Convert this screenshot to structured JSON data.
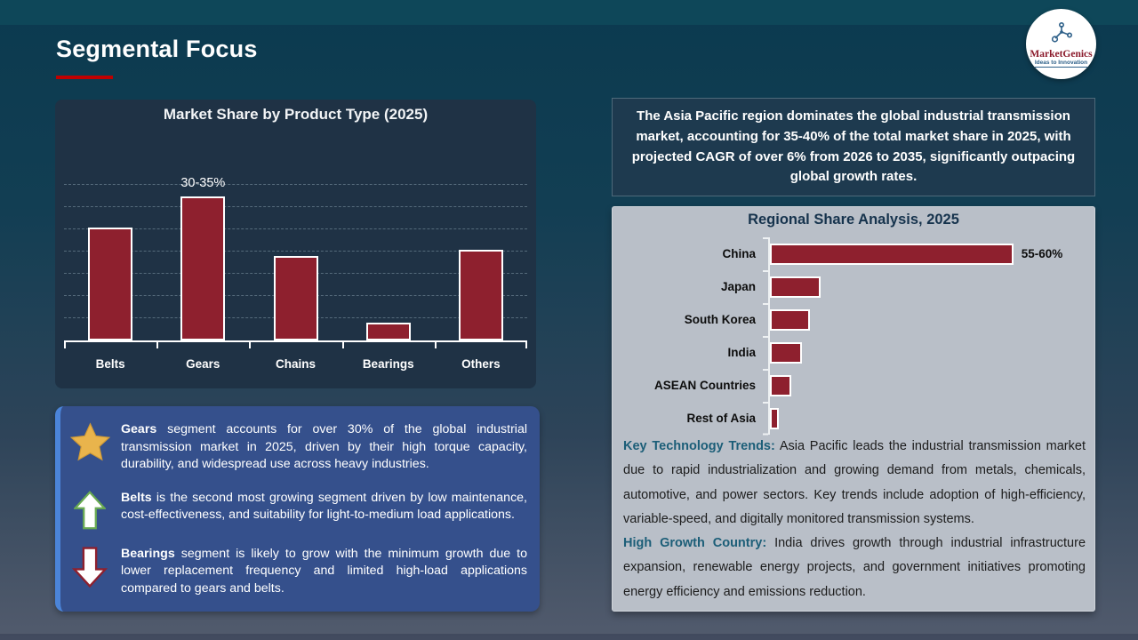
{
  "slide": {
    "title": "Segmental Focus"
  },
  "logo": {
    "brand": "MarketGenics",
    "tagline": "Ideas to Innovation"
  },
  "colors": {
    "accent_underline": "#c00000",
    "bar_red": "#8e202e",
    "panel_navy": "#1f3245",
    "insight_box_blue": "#35508c",
    "insight_stripe_blue": "#4b84d8",
    "region_panel_gray": "#b9bfc8",
    "teal_lead_text": "#1c5e78",
    "star_gold": "#e9b44c",
    "arrow_up_green": "#6aab52",
    "arrow_down_red": "#8e202e"
  },
  "chart_data": [
    {
      "type": "bar",
      "orientation": "vertical",
      "title": "Market Share by Product Type (2025)",
      "categories": [
        "Belts",
        "Gears",
        "Chains",
        "Bearings",
        "Others"
      ],
      "values": [
        25.5,
        32.5,
        19,
        4,
        20.5
      ],
      "data_labels": [
        "",
        "30-35%",
        "",
        "",
        ""
      ],
      "xlabel": "",
      "ylabel": "",
      "ylim": [
        0,
        38
      ],
      "grid": true,
      "grid_step": 5,
      "legend": false
    },
    {
      "type": "bar",
      "orientation": "horizontal",
      "title": "Regional Share Analysis, 2025",
      "categories": [
        "China",
        "Japan",
        "South Korea",
        "India",
        "ASEAN Countries",
        "Rest of Asia"
      ],
      "values": [
        57.5,
        12,
        9.5,
        7.5,
        5,
        2
      ],
      "data_labels": [
        "55-60%",
        "",
        "",
        "",
        "",
        ""
      ],
      "xlabel": "",
      "ylabel": "",
      "xlim": [
        0,
        75
      ],
      "grid": false,
      "legend": false
    }
  ],
  "apac_highlight": {
    "text": "The Asia Pacific region dominates the global industrial transmission market, accounting for 35-40% of the total market share in 2025, with projected CAGR of over 6% from 2026 to 2035, significantly outpacing global growth rates."
  },
  "insights": {
    "items": [
      {
        "icon": "star-icon",
        "lead": "Gears",
        "text": "segment accounts for over 30% of the global industrial transmission market in 2025, driven by their high torque capacity, durability, and widespread use across heavy industries."
      },
      {
        "icon": "arrow-up-icon",
        "lead": "Belts",
        "text": "is the second most growing segment driven by low maintenance, cost-effectiveness, and suitability for light-to-medium load applications."
      },
      {
        "icon": "arrow-down-icon",
        "lead": "Bearings",
        "text": "segment is likely to grow with the minimum growth due to lower replacement frequency and limited high-load applications compared to gears and belts."
      }
    ]
  },
  "region_notes": [
    {
      "lead": "Key Technology Trends:",
      "text": "Asia Pacific leads the industrial transmission market due to rapid industrialization and growing demand from metals, chemicals, automotive, and power sectors. Key trends include adoption of high-efficiency, variable-speed, and digitally monitored transmission systems."
    },
    {
      "lead": "High Growth Country:",
      "text": "India drives growth through industrial infrastructure expansion, renewable energy projects, and government initiatives promoting energy efficiency and emissions reduction."
    }
  ]
}
